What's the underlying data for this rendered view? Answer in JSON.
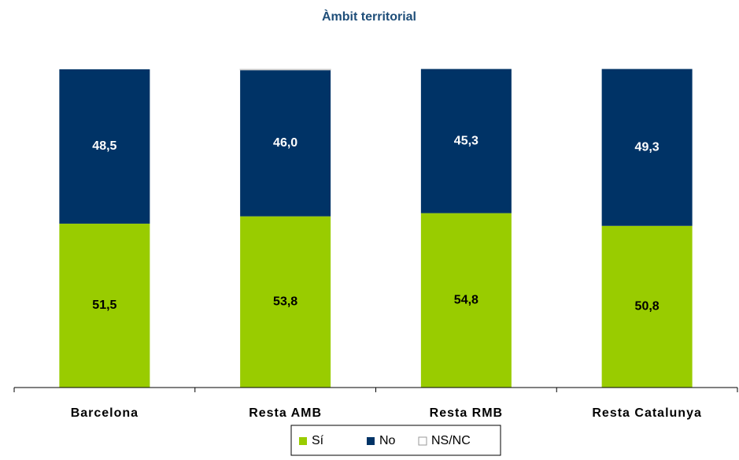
{
  "chart_data": {
    "type": "stacked_bar",
    "title": "Àmbit territorial",
    "categories": [
      "Barcelona",
      "Resta AMB",
      "Resta RMB",
      "Resta Catalunya"
    ],
    "series": [
      {
        "name": "Sí",
        "color": "#99cc00",
        "values": [
          51.5,
          53.8,
          54.8,
          50.8
        ],
        "value_labels": [
          "51,5",
          "53,8",
          "54,8",
          "50,8"
        ],
        "label_color": "#000000"
      },
      {
        "name": "No",
        "color": "#003366",
        "values": [
          48.5,
          46.0,
          45.3,
          49.3
        ],
        "value_labels": [
          "48,5",
          "46,0",
          "45,3",
          "49,3"
        ],
        "label_color": "#ffffff"
      },
      {
        "name": "NS/NC",
        "color": "#ffffff",
        "values": [
          0,
          0.2,
          0,
          0
        ]
      }
    ],
    "ylim": [
      0,
      100
    ],
    "legend": "bottom"
  }
}
